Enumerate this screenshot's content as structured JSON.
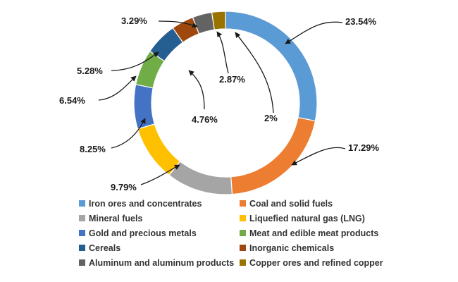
{
  "chart_data": {
    "type": "pie",
    "variant": "donut",
    "title": "",
    "unit": "%",
    "legend_placement": "bottom",
    "slices": [
      {
        "label": "Iron ores and concentrates",
        "value": 23.54,
        "value_label": "23.54%",
        "color": "#5b9bd5"
      },
      {
        "label": "Coal and solid fuels",
        "value": 17.29,
        "value_label": "17.29%",
        "color": "#ed7d31"
      },
      {
        "label": "Mineral fuels",
        "value": 9.79,
        "value_label": "9.79%",
        "color": "#a5a5a5"
      },
      {
        "label": "Liquefied natural gas (LNG)",
        "value": 8.25,
        "value_label": "8.25%",
        "color": "#ffc000"
      },
      {
        "label": "Gold and precious metals",
        "value": 6.54,
        "value_label": "6.54%",
        "color": "#4472c4"
      },
      {
        "label": "Meat and edible meat products",
        "value": 5.28,
        "value_label": "5.28%",
        "color": "#70ad47"
      },
      {
        "label": "Cereals",
        "value": 4.76,
        "value_label": "4.76%",
        "color": "#255e91"
      },
      {
        "label": "Inorganic chemicals",
        "value": 3.29,
        "value_label": "3.29%",
        "color": "#9e480e"
      },
      {
        "label": "Aluminum and aluminum products",
        "value": 2.87,
        "value_label": "2.87%",
        "color": "#636363"
      },
      {
        "label": "Copper ores and refined copper",
        "value": 2,
        "value_label": "2%",
        "color": "#997300"
      }
    ]
  }
}
